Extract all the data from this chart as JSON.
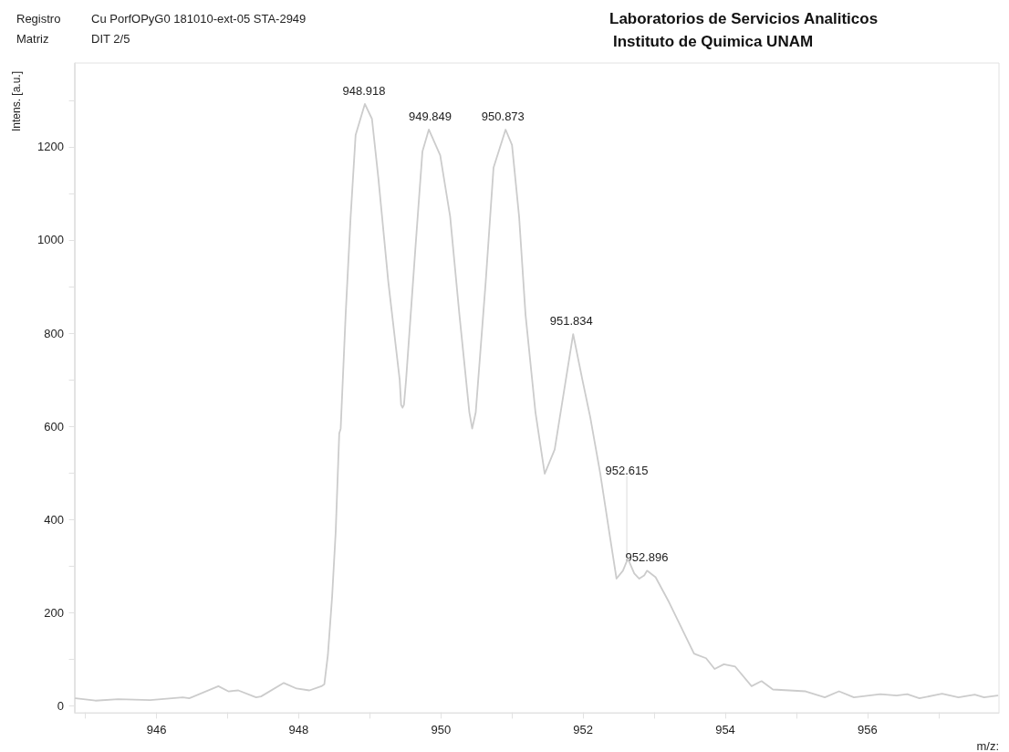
{
  "chart_data": {
    "type": "line",
    "title": "Laboratorios de Servicios Analiticos",
    "subtitle": "Instituto de Quimica UNAM",
    "xlabel": "m/z:",
    "ylabel": "Intens. [a.u.]",
    "annotations": [
      "Registro",
      "Cu PorfOPyG0 181010-ext-05 STA-2949",
      "Matriz",
      "DIT 2/5",
      {
        "text": "948.918",
        "x": 948.918,
        "y": 1292
      },
      {
        "text": "949.849",
        "x": 949.849,
        "y": 1237
      },
      {
        "text": "950.873",
        "x": 950.873,
        "y": 1237
      },
      {
        "text": "951.834",
        "x": 951.834,
        "y": 798
      },
      {
        "text": "952.615",
        "x": 952.615,
        "y": 316
      },
      {
        "text": "952.896",
        "x": 952.896,
        "y": 290
      }
    ],
    "series": [
      {
        "color": "#cccccc",
        "x": [
          944.86,
          945.14,
          945.46,
          945.91,
          946.37,
          946.46,
          946.87,
          947.01,
          947.15,
          947.4,
          947.47,
          947.79,
          947.97,
          948.15,
          948.32,
          948.36,
          948.41,
          948.47,
          948.52,
          948.57,
          948.59,
          948.66,
          948.73,
          948.8,
          948.93,
          949.03,
          949.12,
          949.26,
          949.42,
          949.44,
          949.46,
          949.48,
          949.51,
          949.64,
          949.74,
          949.83,
          949.99,
          950.13,
          950.26,
          950.4,
          950.44,
          950.49,
          950.63,
          950.74,
          950.91,
          951.0,
          951.1,
          951.19,
          951.33,
          951.46,
          951.6,
          951.86,
          951.99,
          952.1,
          952.24,
          952.38,
          952.47,
          952.56,
          952.63,
          952.72,
          952.79,
          952.86,
          952.9,
          953.02,
          953.21,
          953.56,
          953.73,
          953.85,
          953.98,
          954.14,
          954.37,
          954.51,
          954.67,
          955.13,
          955.4,
          955.6,
          955.81,
          956.18,
          956.41,
          956.56,
          956.73,
          957.05,
          957.28,
          957.51,
          957.64,
          957.83
        ],
        "values": [
          16,
          11,
          14,
          12,
          18,
          16,
          42,
          31,
          33,
          18,
          20,
          49,
          37,
          33,
          42,
          46,
          109,
          235,
          374,
          585,
          595,
          840,
          1050,
          1225,
          1292,
          1260,
          1133,
          910,
          700,
          646,
          640,
          646,
          700,
          980,
          1190,
          1237,
          1182,
          1050,
          840,
          630,
          595,
          630,
          910,
          1155,
          1237,
          1204,
          1050,
          840,
          630,
          498,
          550,
          798,
          700,
          620,
          500,
          361,
          273,
          290,
          316,
          284,
          273,
          280,
          290,
          276,
          222,
          112,
          102,
          79,
          89,
          84,
          42,
          53,
          35,
          31,
          18,
          31,
          18,
          25,
          22,
          25,
          16,
          26,
          18,
          24,
          18,
          22
        ]
      }
    ],
    "xlim": [
      944.85,
      957.85
    ],
    "xticks": [
      {
        "value": 945,
        "label": null
      },
      946,
      {
        "value": 947,
        "label": null
      },
      948,
      {
        "value": 949,
        "label": null
      },
      950,
      {
        "value": 951,
        "label": null
      },
      952,
      {
        "value": 953,
        "label": null
      },
      954,
      {
        "value": 955,
        "label": null
      },
      956,
      {
        "value": 957,
        "label": null
      }
    ],
    "ylim": [
      -15,
      1380
    ],
    "yticks": [
      0,
      {
        "value": 100,
        "label": null
      },
      200,
      {
        "value": 300,
        "label": null
      },
      400,
      {
        "value": 500,
        "label": null
      },
      600,
      {
        "value": 700,
        "label": null
      },
      800,
      {
        "value": 900,
        "label": null
      },
      1000,
      {
        "value": 1100,
        "label": null
      },
      1200,
      {
        "value": 1300,
        "label": null
      }
    ],
    "grid": false,
    "marker": "none",
    "line_style": "solid"
  }
}
